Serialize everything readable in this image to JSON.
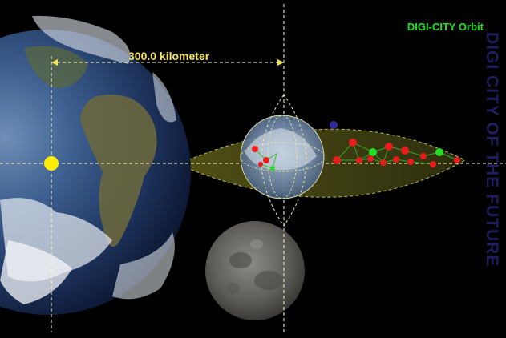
{
  "diagram": {
    "title": "DIGI-CITY Orbit",
    "distance_label": "300.0 kilometer",
    "side_text": "DIGI CITY OF THE FUTURE",
    "credit": "",
    "colors": {
      "title": "#19e619",
      "distance": "#f2e35a",
      "sun_marker": "#ffee00",
      "node_red": "#e81c1c",
      "node_green": "#22e022",
      "node_blue": "#2b2b9a",
      "guide_line": "#ffffcc",
      "orbit_band": "#8a8a2a"
    },
    "bodies": [
      "earth",
      "moon",
      "digi-city-sphere",
      "sun-marker"
    ]
  }
}
